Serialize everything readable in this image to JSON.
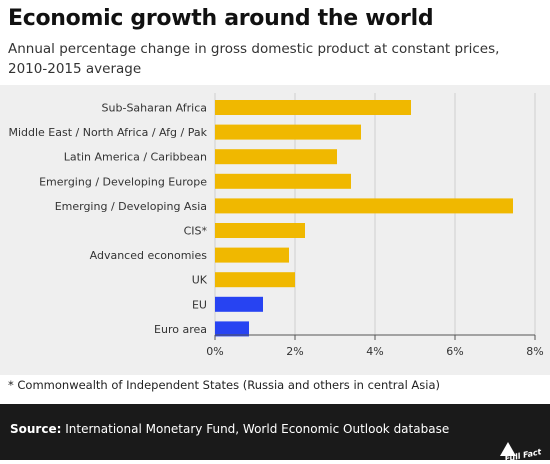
{
  "title": "Economic growth around the world",
  "subtitle": "Annual percentage change in gross domestic product at constant prices, 2010-2015 average",
  "footnote": "* Commonwealth of Independent States (Russia and others in central Asia)",
  "source": {
    "label": "Source:",
    "text": " International Monetary Fund, World Economic Outlook database"
  },
  "logo_text": "Full Fact",
  "colors": {
    "emerging": "#f0b800",
    "europe": "#2743f2",
    "panel": "#efefef",
    "footer": "#1a1a1a"
  },
  "chart_data": {
    "type": "bar",
    "orientation": "horizontal",
    "categories": [
      "Sub-Saharan Africa",
      "Middle East / North Africa / Afg / Pak",
      "Latin America / Caribbean",
      "Emerging / Developing Europe",
      "Emerging / Developing Asia",
      "CIS*",
      "Advanced economies",
      "UK",
      "EU",
      "Euro area"
    ],
    "values": [
      4.9,
      3.65,
      3.05,
      3.4,
      7.45,
      2.25,
      1.85,
      2.0,
      1.2,
      0.85
    ],
    "bar_colors": [
      "#f0b800",
      "#f0b800",
      "#f0b800",
      "#f0b800",
      "#f0b800",
      "#f0b800",
      "#f0b800",
      "#f0b800",
      "#2743f2",
      "#2743f2"
    ],
    "xlim": [
      0,
      8
    ],
    "xticks": [
      0,
      2,
      4,
      6,
      8
    ],
    "xtick_labels": [
      "0%",
      "2%",
      "4%",
      "6%",
      "8%"
    ],
    "grid": true
  }
}
